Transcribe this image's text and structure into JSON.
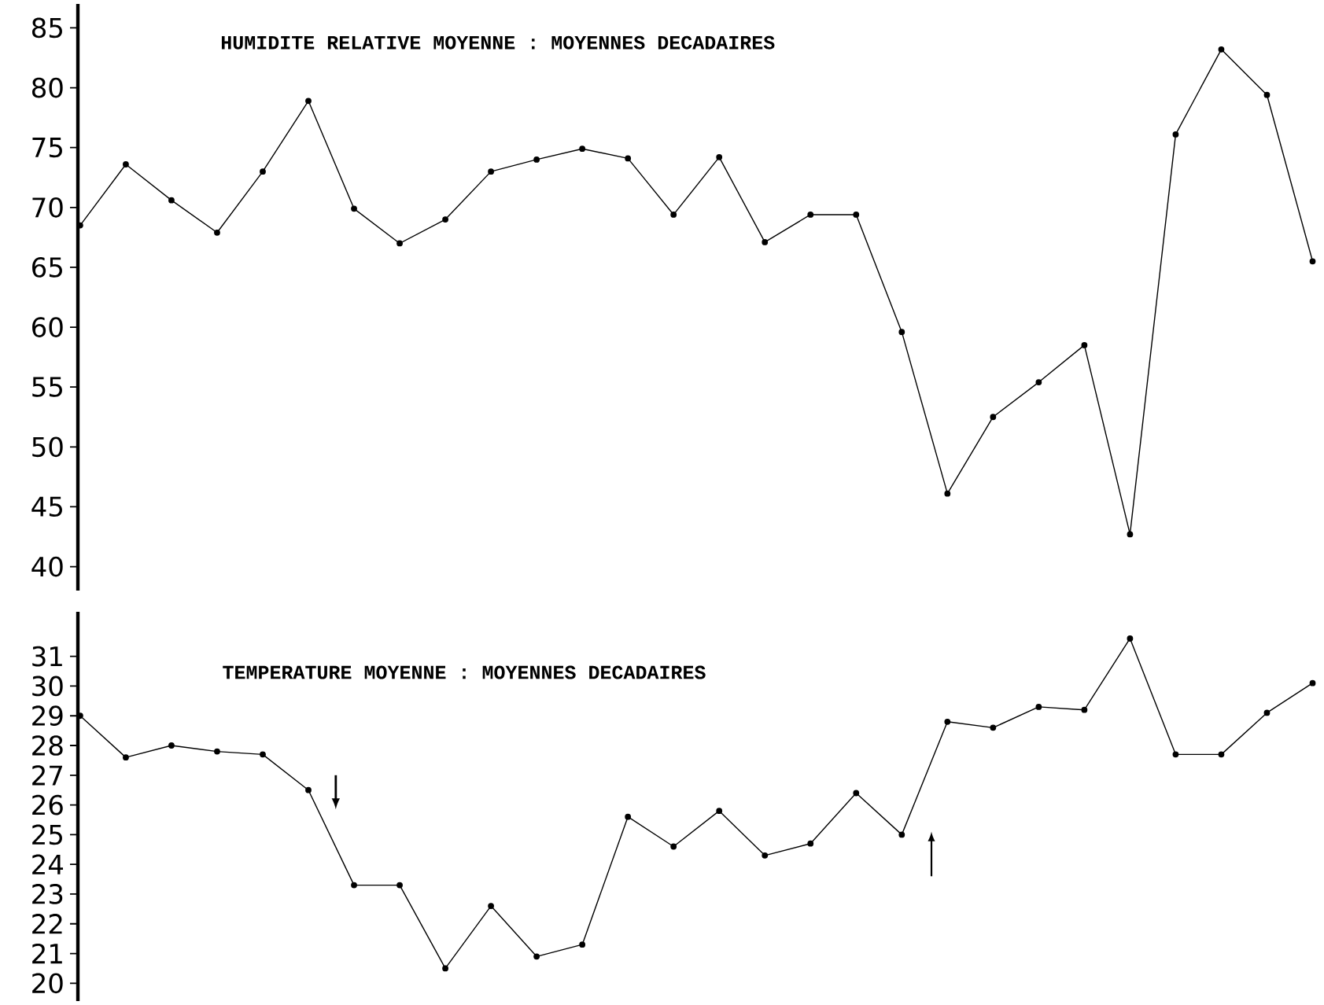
{
  "chart_data": [
    {
      "type": "line",
      "title": "HUMIDITE RELATIVE MOYENNE : MOYENNES DECADAIRES",
      "categories": [
        null,
        null,
        null,
        null,
        null,
        null,
        null,
        null,
        null,
        null,
        null,
        null,
        null,
        null,
        null,
        null,
        null,
        null,
        null,
        null,
        null,
        null,
        null,
        null,
        null,
        null,
        null,
        null
      ],
      "values": [
        68.5,
        73.6,
        70.6,
        67.9,
        73.0,
        78.9,
        69.9,
        67.0,
        69.0,
        73.0,
        74.0,
        74.9,
        74.1,
        69.4,
        74.2,
        67.1,
        69.4,
        69.4,
        59.6,
        46.1,
        52.5,
        55.4,
        58.5,
        42.7,
        76.1,
        83.2,
        79.4,
        65.5
      ],
      "color": "#000000",
      "marker": "circle",
      "ylim": [
        38,
        87
      ],
      "yticks": [
        40,
        45,
        50,
        55,
        60,
        65,
        70,
        75,
        80,
        85
      ]
    },
    {
      "type": "line",
      "title": "TEMPERATURE MOYENNE : MOYENNES DECADAIRES",
      "categories": [
        null,
        null,
        null,
        null,
        null,
        null,
        null,
        null,
        null,
        null,
        null,
        null,
        null,
        null,
        null,
        null,
        null,
        null,
        null,
        null,
        null,
        null,
        null,
        null,
        null,
        null,
        null,
        null
      ],
      "values": [
        29.0,
        27.6,
        28.0,
        27.8,
        27.7,
        26.5,
        23.3,
        23.3,
        20.5,
        22.6,
        20.9,
        21.3,
        25.6,
        24.6,
        25.8,
        24.3,
        24.7,
        26.4,
        25.0,
        28.8,
        28.6,
        29.3,
        29.2,
        31.6,
        27.7,
        27.7,
        29.1,
        30.1
      ],
      "color": "#000000",
      "marker": "circle",
      "ylim": [
        19.4,
        32.5
      ],
      "yticks": [
        20,
        21,
        22,
        23,
        24,
        25,
        26,
        27,
        28,
        29,
        30,
        31
      ]
    }
  ]
}
